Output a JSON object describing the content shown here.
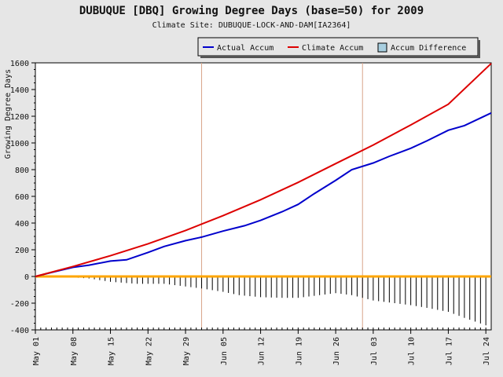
{
  "chart_data": {
    "type": "line",
    "title": "DUBUQUE [DBQ] Growing Degree Days (base=50) for 2009",
    "subtitle": "Climate Site: DUBUQUE-LOCK-AND-DAM[IA2364]",
    "ylabel": "Growing Degree Days",
    "xlabel": "",
    "ylim": [
      -400,
      1600
    ],
    "yticks": [
      -400,
      -200,
      0,
      200,
      400,
      600,
      800,
      1000,
      1200,
      1400,
      1600
    ],
    "x_start_date": "2009-05-01",
    "x_end_date": "2009-07-25",
    "xticks": [
      {
        "date": "2009-05-01",
        "label": "May 01"
      },
      {
        "date": "2009-05-08",
        "label": "May 08"
      },
      {
        "date": "2009-05-15",
        "label": "May 15"
      },
      {
        "date": "2009-05-22",
        "label": "May 22"
      },
      {
        "date": "2009-05-29",
        "label": "May 29"
      },
      {
        "date": "2009-06-05",
        "label": "Jun 05"
      },
      {
        "date": "2009-06-12",
        "label": "Jun 12"
      },
      {
        "date": "2009-06-19",
        "label": "Jun 19"
      },
      {
        "date": "2009-06-26",
        "label": "Jun 26"
      },
      {
        "date": "2009-07-03",
        "label": "Jul 03"
      },
      {
        "date": "2009-07-10",
        "label": "Jul 10"
      },
      {
        "date": "2009-07-17",
        "label": "Jul 17"
      },
      {
        "date": "2009-07-24",
        "label": "Jul 24"
      }
    ],
    "month_markers": [
      "2009-06-01",
      "2009-07-01"
    ],
    "legend": {
      "placement": "top-right",
      "entries": [
        {
          "name": "Actual Accum",
          "color": "#0000cc",
          "kind": "line"
        },
        {
          "name": "Climate Accum",
          "color": "#dd0000",
          "kind": "line"
        },
        {
          "name": "Accum Difference",
          "color": "#a8cfe0",
          "kind": "box"
        }
      ]
    },
    "colors": {
      "actual": "#0000cc",
      "climate": "#dd0000",
      "zero_line": "#ffa500",
      "bars": "#000000",
      "month_marker": "#d9a58a"
    },
    "series": [
      {
        "name": "Actual Accum",
        "points": [
          [
            "2009-05-01",
            0
          ],
          [
            "2009-05-04",
            30
          ],
          [
            "2009-05-08",
            68
          ],
          [
            "2009-05-11",
            85
          ],
          [
            "2009-05-15",
            115
          ],
          [
            "2009-05-18",
            125
          ],
          [
            "2009-05-22",
            180
          ],
          [
            "2009-05-25",
            225
          ],
          [
            "2009-05-29",
            268
          ],
          [
            "2009-06-01",
            295
          ],
          [
            "2009-06-05",
            340
          ],
          [
            "2009-06-09",
            380
          ],
          [
            "2009-06-12",
            420
          ],
          [
            "2009-06-16",
            485
          ],
          [
            "2009-06-19",
            540
          ],
          [
            "2009-06-22",
            620
          ],
          [
            "2009-06-26",
            720
          ],
          [
            "2009-06-29",
            800
          ],
          [
            "2009-07-03",
            850
          ],
          [
            "2009-07-06",
            900
          ],
          [
            "2009-07-10",
            960
          ],
          [
            "2009-07-13",
            1015
          ],
          [
            "2009-07-17",
            1095
          ],
          [
            "2009-07-20",
            1130
          ],
          [
            "2009-07-25",
            1225
          ]
        ]
      },
      {
        "name": "Climate Accum",
        "points": [
          [
            "2009-05-01",
            0
          ],
          [
            "2009-05-08",
            75
          ],
          [
            "2009-05-15",
            155
          ],
          [
            "2009-05-22",
            245
          ],
          [
            "2009-05-29",
            345
          ],
          [
            "2009-06-05",
            455
          ],
          [
            "2009-06-12",
            575
          ],
          [
            "2009-06-19",
            705
          ],
          [
            "2009-06-26",
            845
          ],
          [
            "2009-07-03",
            985
          ],
          [
            "2009-07-10",
            1135
          ],
          [
            "2009-07-17",
            1290
          ],
          [
            "2009-07-25",
            1595
          ]
        ]
      },
      {
        "name": "Accum Difference",
        "type": "bar",
        "points": [
          [
            "2009-05-01",
            0
          ],
          [
            "2009-05-08",
            -7
          ],
          [
            "2009-05-11",
            -15
          ],
          [
            "2009-05-15",
            -40
          ],
          [
            "2009-05-20",
            -55
          ],
          [
            "2009-05-25",
            -55
          ],
          [
            "2009-05-29",
            -75
          ],
          [
            "2009-06-01",
            -90
          ],
          [
            "2009-06-05",
            -115
          ],
          [
            "2009-06-08",
            -140
          ],
          [
            "2009-06-12",
            -155
          ],
          [
            "2009-06-16",
            -160
          ],
          [
            "2009-06-19",
            -160
          ],
          [
            "2009-06-22",
            -145
          ],
          [
            "2009-06-26",
            -125
          ],
          [
            "2009-06-29",
            -140
          ],
          [
            "2009-07-03",
            -180
          ],
          [
            "2009-07-06",
            -195
          ],
          [
            "2009-07-10",
            -215
          ],
          [
            "2009-07-13",
            -235
          ],
          [
            "2009-07-17",
            -265
          ],
          [
            "2009-07-20",
            -310
          ],
          [
            "2009-07-25",
            -380
          ]
        ]
      }
    ]
  }
}
